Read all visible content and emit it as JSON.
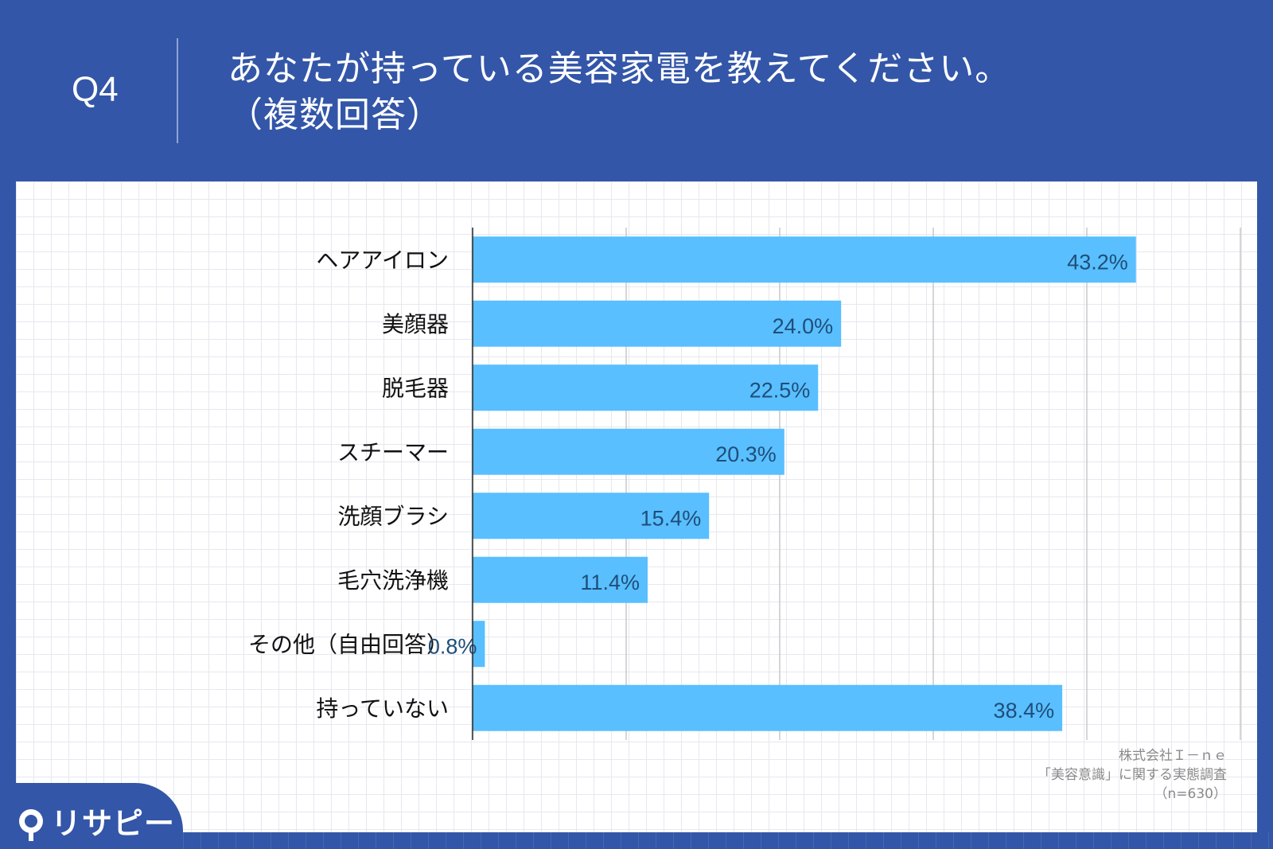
{
  "header": {
    "question_label": "Q4",
    "title_line1": "あなたが持っている美容家電を教えてください。",
    "title_line2": "（複数回答）"
  },
  "chart_data": {
    "type": "bar",
    "orientation": "horizontal",
    "categories": [
      "ヘアアイロン",
      "美顔器",
      "脱毛器",
      "スチーマー",
      "洗顔ブラシ",
      "毛穴洗浄機",
      "その他（自由回答）",
      "持っていない"
    ],
    "values": [
      43.2,
      24.0,
      22.5,
      20.3,
      15.4,
      11.4,
      0.8,
      38.4
    ],
    "value_labels": [
      "43.2%",
      "24.0%",
      "22.5%",
      "20.3%",
      "15.4%",
      "11.4%",
      "0.8%",
      "38.4%"
    ],
    "xlim": [
      0,
      50
    ],
    "grid": true,
    "bar_color": "#59bfff",
    "label_color": "#1f4e79"
  },
  "source": {
    "company": "株式会社Ｉ－ｎｅ",
    "survey": "「美容意識」に関する実態調査",
    "sample": "（n=630）"
  },
  "logo": {
    "text": "リサピー",
    "icon": "pin-icon"
  },
  "colors": {
    "brand_blue": "#3356a8",
    "panel": "#ffffff"
  }
}
